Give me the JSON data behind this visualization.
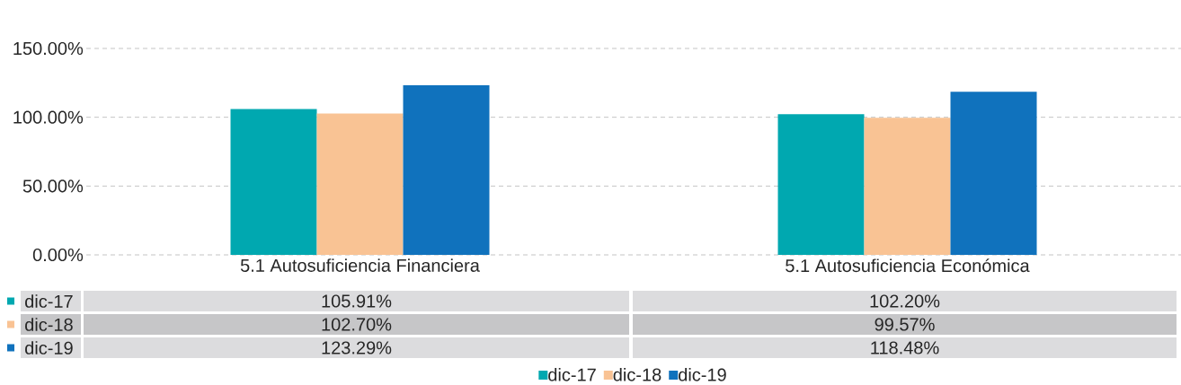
{
  "chart_data": {
    "type": "bar",
    "categories": [
      "5.1 Autosuficiencia Financiera",
      "5.1 Autosuficiencia Económica"
    ],
    "series": [
      {
        "name": "dic-17",
        "color": "#00a8b0",
        "values": [
          105.91,
          102.2
        ],
        "value_labels": [
          "105.91%",
          "102.20%"
        ]
      },
      {
        "name": "dic-18",
        "color": "#f9c394",
        "values": [
          102.7,
          99.57
        ],
        "value_labels": [
          "102.70%",
          "99.57%"
        ]
      },
      {
        "name": "dic-19",
        "color": "#1072bd",
        "values": [
          123.29,
          118.48
        ],
        "value_labels": [
          "123.29%",
          "118.48%"
        ]
      }
    ],
    "ylim": [
      0,
      150
    ],
    "yticks": [
      {
        "value": 0,
        "label": "0.00%"
      },
      {
        "value": 50,
        "label": "50.00%"
      },
      {
        "value": 100,
        "label": "100.00%"
      },
      {
        "value": 150,
        "label": "150.00%"
      }
    ],
    "grid": "y",
    "legend": "bottom"
  }
}
